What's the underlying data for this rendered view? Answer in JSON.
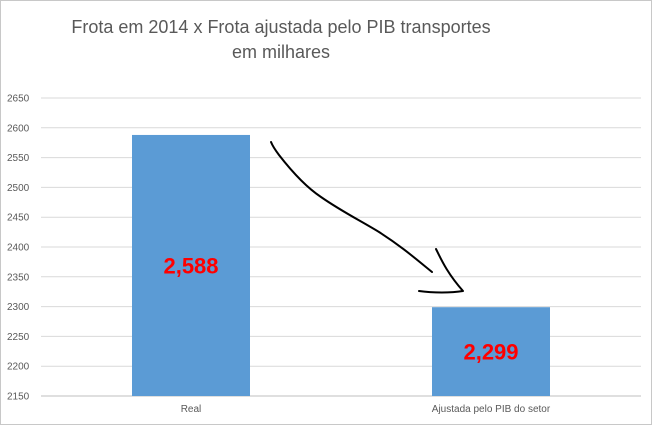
{
  "chart_data": {
    "type": "bar",
    "title": "Frota em 2014 x Frota ajustada pelo PIB transportes",
    "subtitle": "em milhares",
    "categories": [
      "Real",
      "Ajustada pelo PIB do setor"
    ],
    "values": [
      2588,
      2299
    ],
    "data_labels": [
      "2,588",
      "2,299"
    ],
    "ylim": [
      2150,
      2650
    ],
    "yticks": [
      2150,
      2200,
      2250,
      2300,
      2350,
      2400,
      2450,
      2500,
      2550,
      2600,
      2650
    ],
    "xlabel": "",
    "ylabel": "",
    "grid": true,
    "bar_color": "#5b9bd5",
    "label_color": "#ff0000",
    "annotation": "hand-drawn arrow from Real bar to Ajustada bar"
  }
}
